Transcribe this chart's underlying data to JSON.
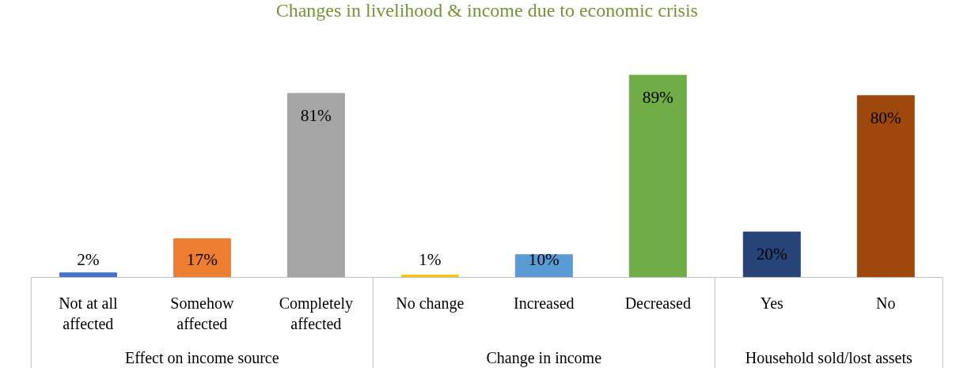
{
  "chart_data": {
    "type": "bar",
    "title": "Changes in livelihood & income due to economic crisis",
    "categories": [
      "Not at all affected",
      "Somehow affected",
      "Completely affected",
      "No change",
      "Increased",
      "Decreased",
      "Yes",
      "No"
    ],
    "values": [
      2,
      17,
      81,
      1,
      10,
      89,
      20,
      80
    ],
    "colors": [
      "#4472c4",
      "#ed7d31",
      "#a5a5a5",
      "#ffc000",
      "#5b9bd5",
      "#70ad47",
      "#264478",
      "#9e480e"
    ],
    "value_labels": [
      "2%",
      "17%",
      "81%",
      "1%",
      "10%",
      "89%",
      "20%",
      "80%"
    ],
    "annotations": [
      "Effect on income source",
      "Change in income",
      "Household sold/lost assets"
    ],
    "grid": false
  }
}
